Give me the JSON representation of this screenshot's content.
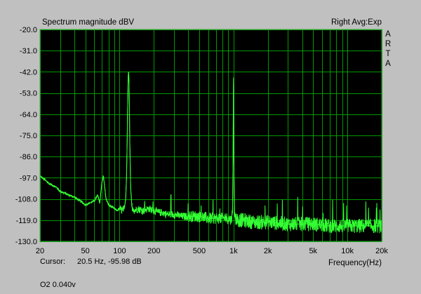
{
  "chart_data": {
    "type": "line",
    "title": "Spectrum magnitude dBV",
    "top_right_label": "Right Avg:Exp",
    "brand_letters": [
      "A",
      "R",
      "T",
      "A"
    ],
    "xlabel": "Frequency(Hz)",
    "x_scale": "log",
    "xlim": [
      20,
      20000
    ],
    "ylim": [
      -130,
      -20
    ],
    "y_ticks": [
      "-20.0",
      "-31.0",
      "-42.0",
      "-53.0",
      "-64.0",
      "-75.0",
      "-86.0",
      "-97.0",
      "-108.0",
      "-119.0",
      "-130.0"
    ],
    "y_tick_values": [
      -20,
      -31,
      -42,
      -53,
      -64,
      -75,
      -86,
      -97,
      -108,
      -119,
      -130
    ],
    "x_ticks": [
      "20",
      "50",
      "100",
      "200",
      "500",
      "1k",
      "2k",
      "5k",
      "10k",
      "20k"
    ],
    "x_tick_values": [
      20,
      50,
      100,
      200,
      500,
      1000,
      2000,
      5000,
      10000,
      20000
    ],
    "grid": true,
    "colors": {
      "background": "#000000",
      "grid": "#009900",
      "trace": "#33ff33",
      "window": "#c0c0c0"
    },
    "series": [
      {
        "x": [
          20,
          22,
          24,
          26,
          28,
          30,
          33,
          36,
          40,
          45,
          50,
          55,
          60,
          64,
          67,
          70,
          72,
          74,
          76,
          80,
          85,
          90,
          95,
          100,
          105,
          110,
          113,
          115,
          116,
          117,
          118,
          119,
          120,
          121,
          122,
          123,
          125,
          128,
          135,
          145,
          160,
          180,
          200,
          220,
          240,
          260,
          300,
          350,
          400,
          500,
          600,
          700,
          800,
          900,
          950,
          980,
          990,
          1000,
          1010,
          1020,
          1050,
          1100,
          1200,
          1500,
          2000,
          3000,
          4000,
          5000,
          7000,
          10000,
          15000,
          20000
        ],
        "y": [
          -96,
          -98,
          -100,
          -101,
          -102,
          -104,
          -105,
          -106,
          -107,
          -109,
          -111,
          -110,
          -109,
          -106,
          -110,
          -99,
          -96,
          -102,
          -108,
          -111,
          -112,
          -113,
          -114,
          -113,
          -114,
          -113,
          -108,
          -97,
          -85,
          -70,
          -56,
          -44,
          -42,
          -47,
          -62,
          -80,
          -102,
          -112,
          -114,
          -113,
          -114,
          -113,
          -114,
          -115,
          -115,
          -116,
          -116,
          -117,
          -117,
          -117,
          -118,
          -118,
          -118,
          -118,
          -119,
          -115,
          -90,
          -45,
          -95,
          -117,
          -118,
          -119,
          -119,
          -120,
          -120,
          -121,
          -121,
          -121,
          -122,
          -122,
          -122,
          -122
        ]
      }
    ]
  },
  "status": {
    "cursor_label": "Cursor:",
    "cursor_value": "20.5 Hz, -95.98 dB",
    "footer": "O2 0.040v"
  }
}
